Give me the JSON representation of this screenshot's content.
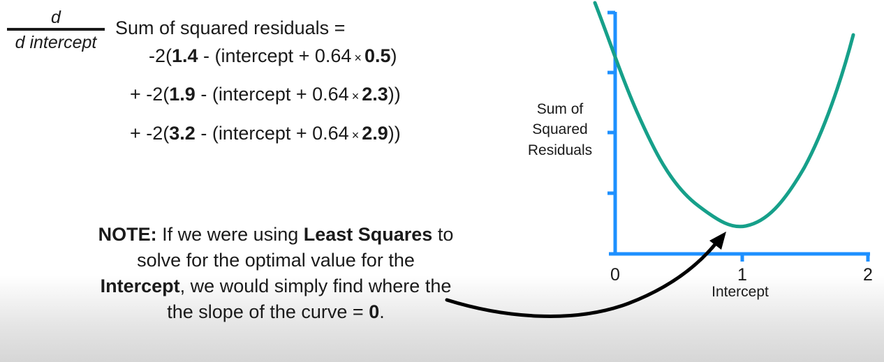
{
  "derivative": {
    "numerator": "d",
    "denominator": "d intercept"
  },
  "equation": {
    "head": "Sum of squared residuals =",
    "terms": [
      {
        "prefix": "-2(",
        "observed": "1.4",
        "mid": " - (intercept + 0.64",
        "times": "×",
        "weight": "0.5",
        "suffix": ")"
      },
      {
        "prefix": "+ -2(",
        "observed": "1.9",
        "mid": " - (intercept + 0.64",
        "times": "×",
        "weight": "2.3",
        "suffix": "))"
      },
      {
        "prefix": "+ -2(",
        "observed": "3.2",
        "mid": " - (intercept + 0.64",
        "times": "×",
        "weight": "2.9",
        "suffix": "))"
      }
    ]
  },
  "note": {
    "lead": "NOTE:",
    "t1": " If we were using ",
    "b1": "Least Squares",
    "t2": " to solve for the optimal value for the ",
    "b2": "Intercept",
    "t3": ", we would simply find where the the slope of the curve = ",
    "b3": "0",
    "t4": "."
  },
  "graph": {
    "y_label_lines": [
      "Sum of",
      "Squared",
      "Residuals"
    ],
    "x_label": "Intercept",
    "x_ticks": [
      "0",
      "1",
      "2"
    ],
    "axis_color": "#1e90ff",
    "curve_color": "#16a08a",
    "arrow_color": "#000000"
  }
}
